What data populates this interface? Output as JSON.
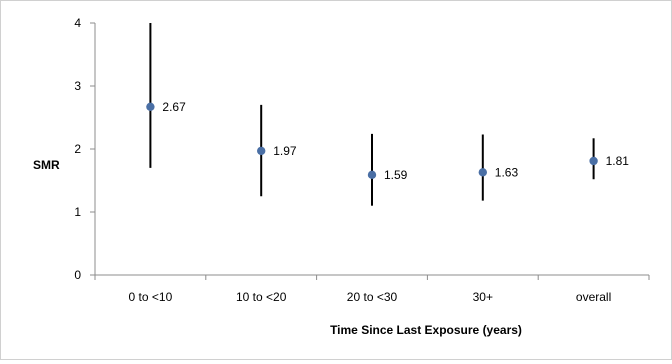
{
  "chart_data": {
    "type": "scatter",
    "title": "",
    "xlabel": "Time Since Last Exposure (years)",
    "ylabel": "SMR",
    "ylim": [
      0,
      4
    ],
    "yticks": [
      "0",
      "1",
      "2",
      "3",
      "4"
    ],
    "grid": false,
    "categories": [
      "0 to <10",
      "10 to <20",
      "20 to <30",
      "30+",
      "overall"
    ],
    "values": [
      2.67,
      1.97,
      1.59,
      1.63,
      1.81
    ],
    "value_labels": [
      "2.67",
      "1.97",
      "1.59",
      "1.63",
      "1.81"
    ],
    "error_low": [
      1.7,
      1.25,
      1.1,
      1.18,
      1.52
    ],
    "error_high": [
      4.0,
      2.7,
      2.24,
      2.23,
      2.17
    ],
    "colors": {
      "point": "#4a6fa5",
      "errorbar": "#000000",
      "axis": "#8c8c8c",
      "text": "#000000"
    }
  }
}
